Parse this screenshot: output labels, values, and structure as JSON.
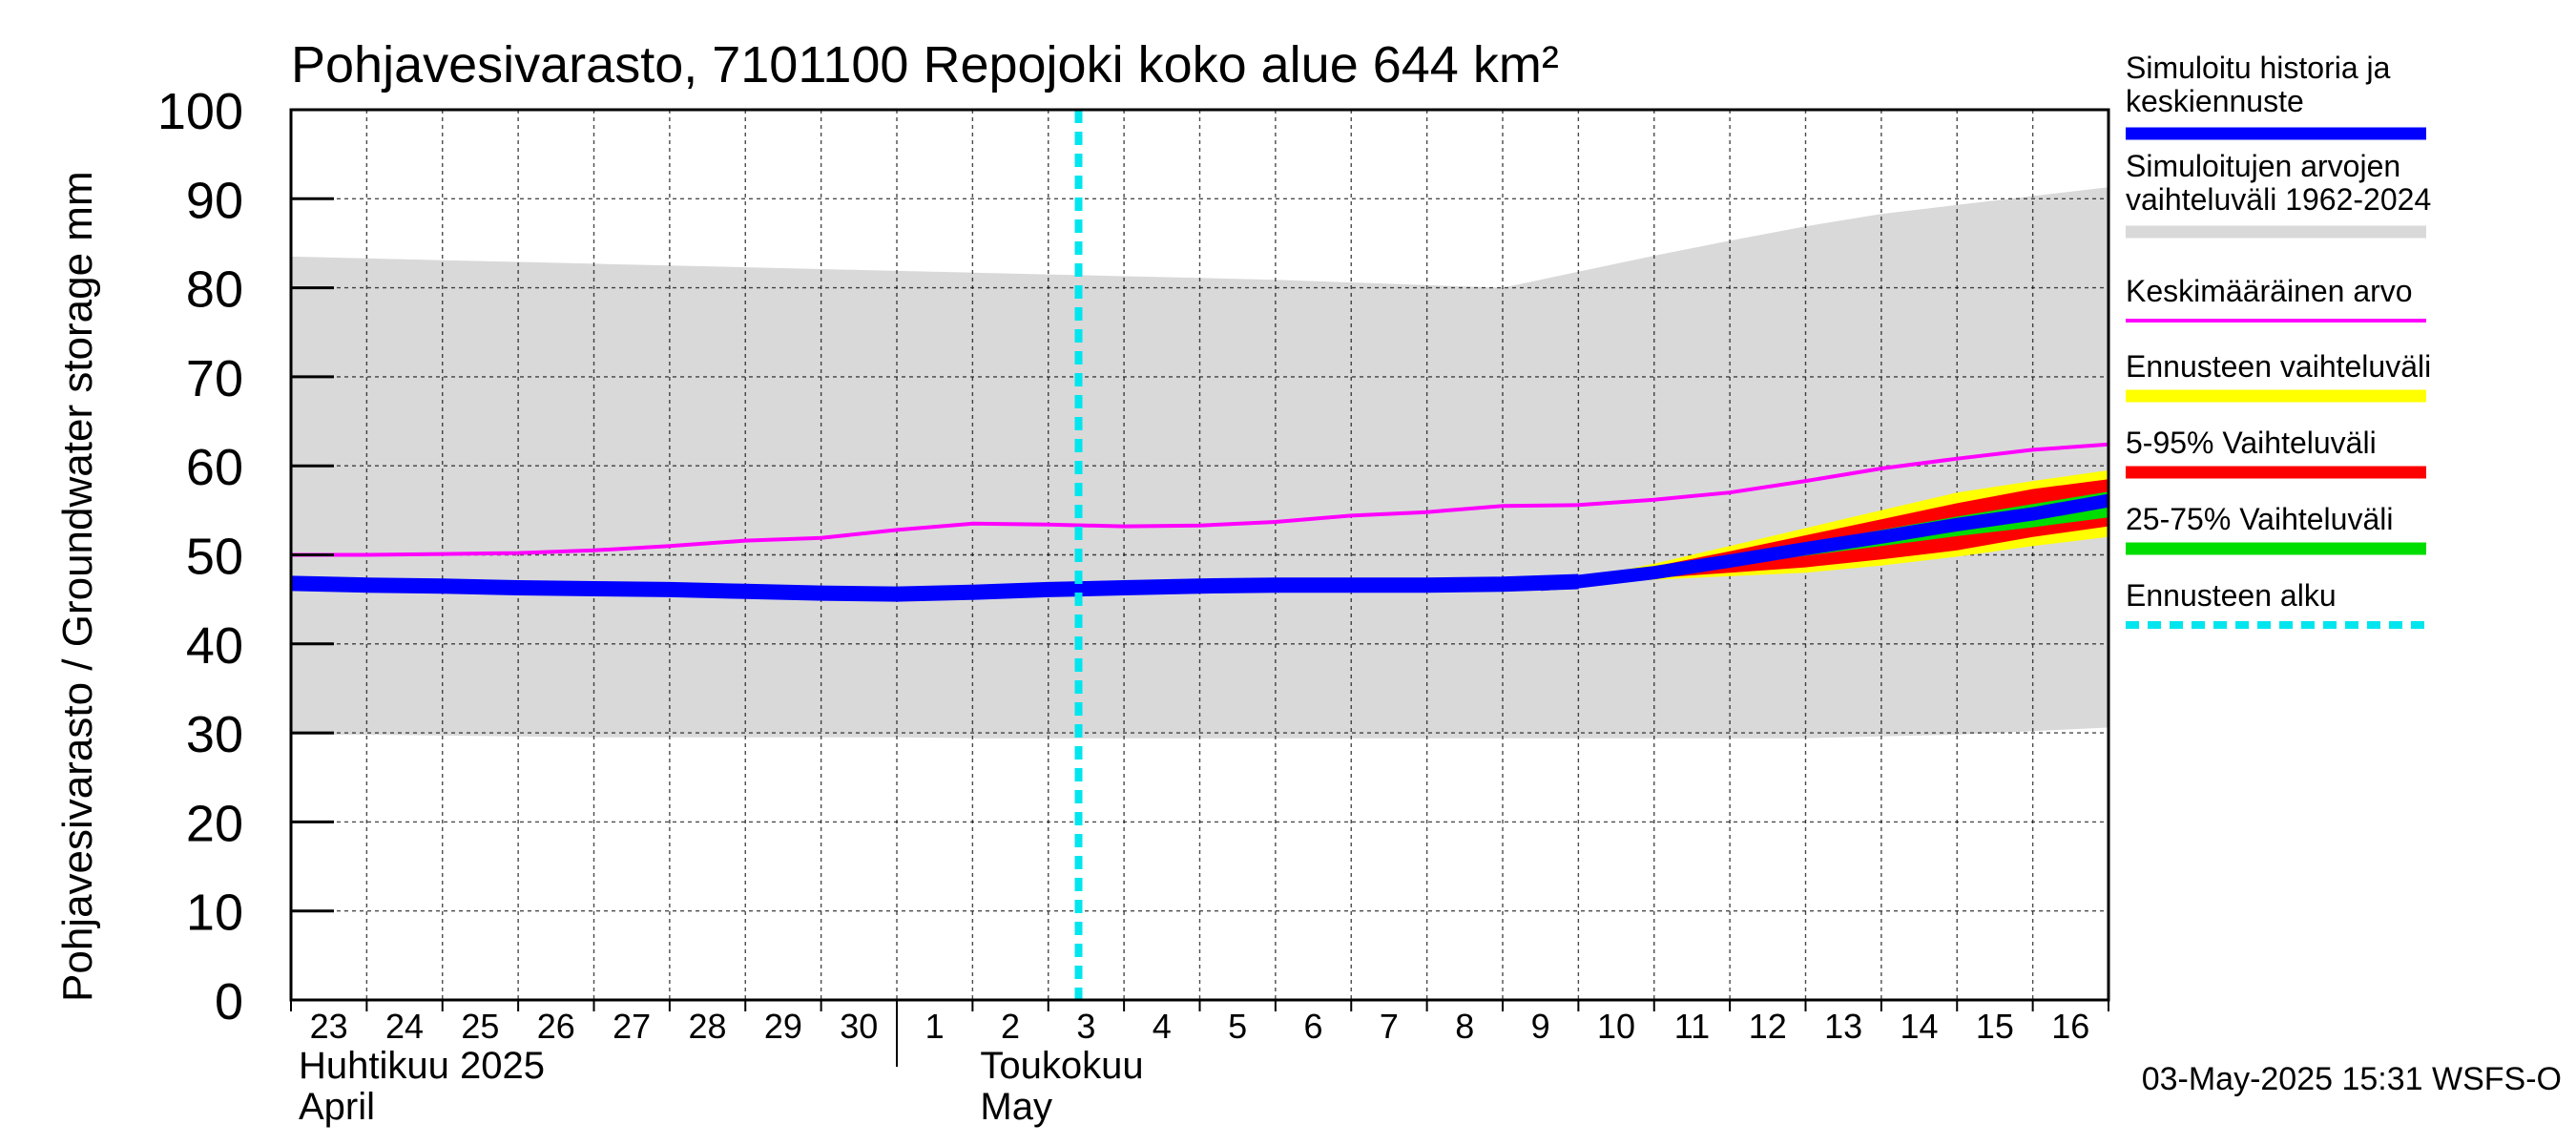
{
  "chart_data": {
    "type": "area",
    "title": "Pohjavesivarasto, 7101100 Repojoki koko alue 644 km²",
    "ylabel": "Pohjavesivarasto / Groundwater storage   mm",
    "ylim": [
      0,
      100
    ],
    "yticks": [
      0,
      10,
      20,
      30,
      40,
      50,
      60,
      70,
      80,
      90,
      100
    ],
    "x_day_labels": [
      "23",
      "24",
      "25",
      "26",
      "27",
      "28",
      "29",
      "30",
      "1",
      "2",
      "3",
      "4",
      "5",
      "6",
      "7",
      "8",
      "9",
      "10",
      "11",
      "12",
      "13",
      "14",
      "15",
      "16"
    ],
    "month_labels": [
      {
        "fi": "Huhtikuu  2025",
        "en": "April"
      },
      {
        "fi": "Toukokuu",
        "en": "May"
      }
    ],
    "forecast_start_day": 10.4,
    "colors": {
      "history": "#0000ff",
      "range": "#d9d9d9",
      "mean": "#ff00ff",
      "forecast_range": "#ffff00",
      "p5_95": "#ff0000",
      "p25_75": "#00dd00",
      "forecast_start": "#00e5ee"
    },
    "series": {
      "range_days": [
        0,
        1,
        2,
        3,
        4,
        5,
        6,
        7,
        8,
        9,
        10,
        11,
        12,
        13,
        14,
        15,
        16,
        17,
        18,
        19,
        20,
        21,
        22,
        23,
        24
      ],
      "range_upper": [
        83.5,
        83.3,
        83.1,
        82.9,
        82.7,
        82.5,
        82.3,
        82.1,
        81.9,
        81.7,
        81.5,
        81.3,
        81.1,
        80.9,
        80.6,
        80.3,
        80.0,
        81.8,
        83.6,
        85.3,
        86.9,
        88.3,
        89.3,
        90.3,
        91.3
      ],
      "range_lower": [
        29.8,
        29.8,
        29.7,
        29.6,
        29.5,
        29.5,
        29.5,
        29.5,
        29.5,
        29.4,
        29.4,
        29.4,
        29.4,
        29.4,
        29.4,
        29.4,
        29.4,
        29.4,
        29.4,
        29.4,
        29.4,
        29.6,
        29.8,
        30.2,
        30.6
      ],
      "mean_days": [
        0,
        1,
        2,
        3,
        4,
        5,
        6,
        7,
        8,
        9,
        10,
        11,
        12,
        13,
        14,
        15,
        16,
        17,
        18,
        19,
        20,
        21,
        22,
        23,
        24
      ],
      "mean": [
        50.0,
        50.0,
        50.1,
        50.2,
        50.5,
        51.0,
        51.6,
        51.9,
        52.8,
        53.5,
        53.4,
        53.2,
        53.3,
        53.7,
        54.4,
        54.8,
        55.5,
        55.6,
        56.2,
        57.0,
        58.3,
        59.7,
        60.8,
        61.8,
        62.4
      ],
      "history_days": [
        0,
        1,
        2,
        3,
        4,
        5,
        6,
        7,
        8,
        9,
        10,
        11,
        12,
        13,
        14,
        15,
        16,
        17
      ],
      "history": [
        46.8,
        46.6,
        46.5,
        46.3,
        46.2,
        46.1,
        45.9,
        45.7,
        45.6,
        45.8,
        46.1,
        46.3,
        46.5,
        46.6,
        46.6,
        46.6,
        46.7,
        47.0
      ],
      "forecast_days": [
        16.5,
        17,
        18,
        19,
        20,
        21,
        22,
        23,
        24
      ],
      "forecast_max": [
        46.8,
        47.3,
        49.0,
        51.0,
        53.0,
        55.0,
        57.0,
        58.3,
        59.5
      ],
      "forecast_min": [
        46.6,
        46.8,
        47.2,
        47.6,
        48.0,
        48.8,
        49.8,
        51.0,
        52.0
      ],
      "p95": [
        46.8,
        47.2,
        48.7,
        50.4,
        52.2,
        54.0,
        55.8,
        57.4,
        58.5
      ],
      "p5": [
        46.6,
        46.8,
        47.4,
        48.0,
        48.6,
        49.5,
        50.5,
        52.0,
        53.2
      ],
      "p75": [
        46.8,
        47.1,
        48.3,
        49.8,
        51.3,
        52.8,
        54.3,
        55.7,
        57.1
      ],
      "p25": [
        46.7,
        46.9,
        47.8,
        48.8,
        49.9,
        51.0,
        52.1,
        53.1,
        54.2
      ],
      "forecast_median": [
        46.7,
        47.0,
        48.0,
        49.3,
        50.7,
        52.0,
        53.4,
        54.6,
        56.1
      ]
    },
    "legend": [
      {
        "label1": "Simuloitu historia ja",
        "label2": "keskiennuste",
        "key": "history",
        "style": "solid"
      },
      {
        "label1": "Simuloitujen arvojen",
        "label2": "vaihteluväli 1962-2024",
        "key": "range",
        "style": "solid"
      },
      {
        "label1": "Keskimääräinen arvo",
        "label2": "",
        "key": "mean",
        "style": "thin"
      },
      {
        "label1": "Ennusteen vaihteluväli",
        "label2": "",
        "key": "forecast_range",
        "style": "solid"
      },
      {
        "label1": "5-95% Vaihteluväli",
        "label2": "",
        "key": "p5_95",
        "style": "solid"
      },
      {
        "label1": "25-75% Vaihteluväli",
        "label2": "",
        "key": "p25_75",
        "style": "solid"
      },
      {
        "label1": "Ennusteen alku",
        "label2": "",
        "key": "forecast_start",
        "style": "dashed"
      }
    ],
    "legend_position": "right",
    "footer": "03-May-2025 15:31 WSFS-O"
  }
}
